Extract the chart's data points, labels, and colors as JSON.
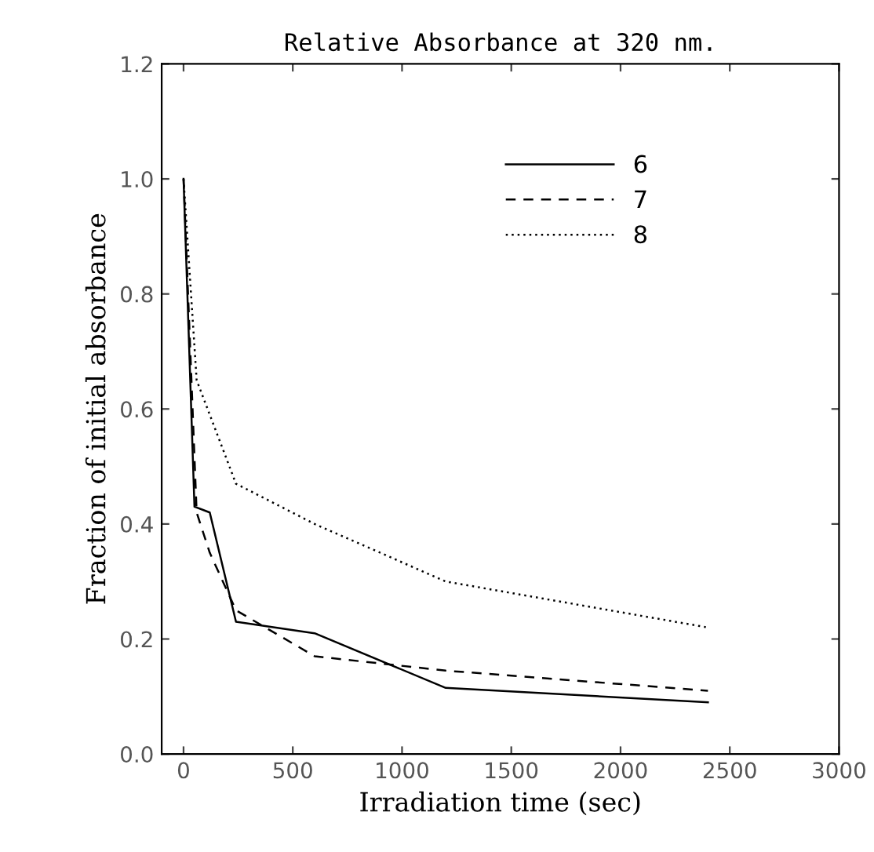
{
  "chart_data": {
    "type": "line",
    "title": "Relative Absorbance at 320 nm.",
    "xlabel": "Irradiation time (sec)",
    "ylabel": "Fraction of initial absorbance",
    "xlim": [
      -100,
      3000
    ],
    "xticks": [
      0,
      500,
      1000,
      1500,
      2000,
      2500,
      3000
    ],
    "ylim": [
      0.0,
      1.2
    ],
    "yticks": [
      {
        "value": 0.0,
        "label": "0.0"
      },
      0.2,
      0.4,
      0.6,
      0.8,
      {
        "value": 1.0,
        "label": "1.0"
      },
      1.2
    ],
    "legend": "top right",
    "grid": false,
    "series": [
      {
        "name": "6",
        "color": "#000000",
        "line_style": "solid",
        "x": [
          0,
          50,
          120,
          240,
          600,
          1200,
          2400
        ],
        "values": [
          1.0,
          0.43,
          0.42,
          0.23,
          0.21,
          0.115,
          0.09
        ]
      },
      {
        "name": "7",
        "color": "#000000",
        "line_style": "dashed",
        "x": [
          0,
          60,
          120,
          240,
          600,
          1200,
          2400
        ],
        "values": [
          1.0,
          0.42,
          0.35,
          0.25,
          0.17,
          0.145,
          0.11
        ]
      },
      {
        "name": "8",
        "color": "#000000",
        "line_style": "dotted",
        "x": [
          0,
          60,
          240,
          600,
          1200,
          2400
        ],
        "values": [
          1.0,
          0.65,
          0.47,
          0.4,
          0.3,
          0.22
        ]
      }
    ]
  }
}
